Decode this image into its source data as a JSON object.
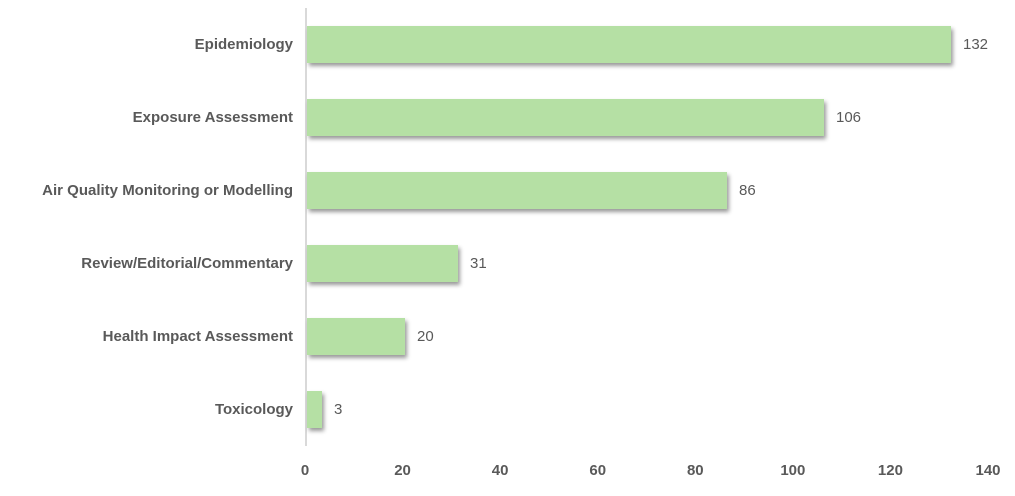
{
  "chart_data": {
    "type": "bar",
    "orientation": "horizontal",
    "title": "",
    "xlabel": "",
    "ylabel": "",
    "categories": [
      "Epidemiology",
      "Exposure Assessment",
      "Air Quality Monitoring or Modelling",
      "Review/Editorial/Commentary",
      "Health Impact Assessment",
      "Toxicology"
    ],
    "values": [
      132,
      106,
      86,
      31,
      20,
      3
    ],
    "data_labels": [
      "132",
      "106",
      "86",
      "31",
      "20",
      "3"
    ],
    "xlim": [
      0,
      140
    ],
    "x_ticks": [
      0,
      20,
      40,
      60,
      80,
      100,
      120,
      140
    ],
    "grid": false,
    "legend": false,
    "colors": {
      "bar_fill": "#b5e0a4",
      "axis_line": "#d9d9d9",
      "category_label_text": "#595959",
      "data_label_text": "#595959",
      "tick_label_text": "#595959",
      "background": "#ffffff"
    }
  }
}
